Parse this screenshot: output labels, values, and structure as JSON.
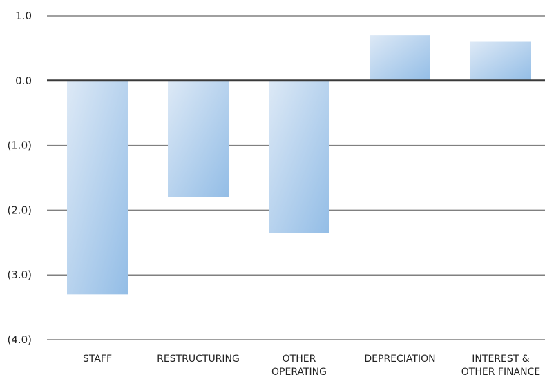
{
  "chart_data": {
    "type": "bar",
    "categories": [
      [
        "STAFF"
      ],
      [
        "RESTRUCTURING"
      ],
      [
        "OTHER",
        "OPERATING"
      ],
      [
        "DEPRECIATION"
      ],
      [
        "INTEREST &",
        "OTHER FINANCE"
      ]
    ],
    "values": [
      -3.3,
      -1.8,
      -2.35,
      0.7,
      0.6
    ],
    "yticks": [
      1.0,
      0.0,
      -1.0,
      -2.0,
      -3.0,
      -4.0
    ],
    "ytick_labels": [
      "1.0",
      "0.0",
      "(1.0)",
      "(2.0)",
      "(3.0)",
      "(4.0)"
    ],
    "ylim": [
      -4.0,
      1.0
    ],
    "grid": true,
    "title": "",
    "xlabel": "",
    "ylabel": "",
    "colors": {
      "bar_light": "#dde9f6",
      "bar_dark": "#93bde6",
      "gridline": "#808080",
      "zero_line": "#3a3a3a"
    }
  }
}
